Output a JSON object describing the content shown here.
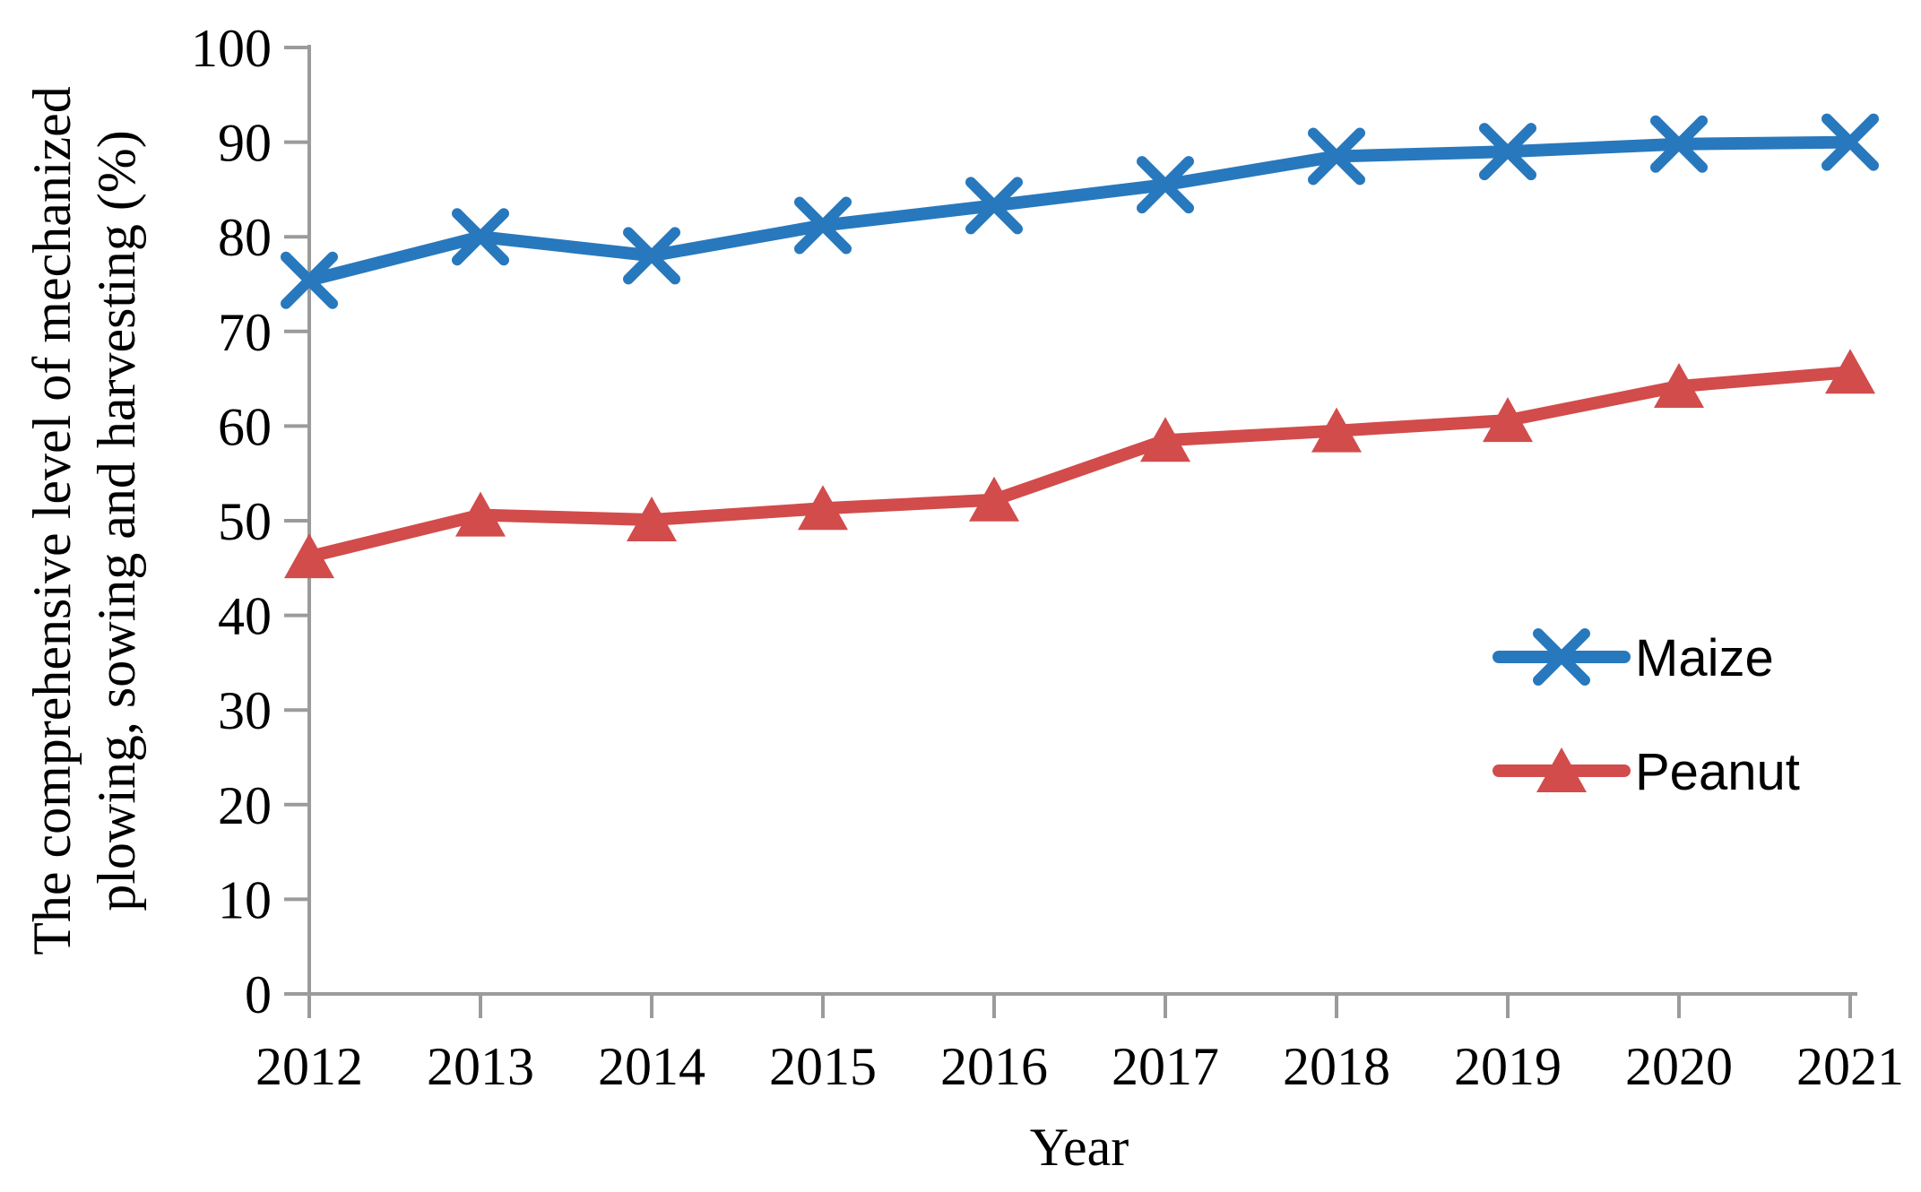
{
  "chart_data": {
    "type": "line",
    "title": "",
    "x": [
      "2012",
      "2013",
      "2014",
      "2015",
      "2016",
      "2017",
      "2018",
      "2019",
      "2020",
      "2021"
    ],
    "series": [
      {
        "name": "Maize",
        "color": "#2878BD",
        "marker": "x-cross",
        "values": [
          75.4,
          80.0,
          78.0,
          81.2,
          83.3,
          85.5,
          88.5,
          89.0,
          89.8,
          90.0
        ]
      },
      {
        "name": "Peanut",
        "color": "#D14C4B",
        "marker": "triangle-up",
        "values": [
          46.2,
          50.6,
          50.1,
          51.3,
          52.2,
          58.5,
          59.5,
          60.6,
          64.2,
          65.7
        ]
      }
    ],
    "xlabel": "Year",
    "ylabel": "The comprehensive level of mechanized plowing, sowing and harvesting (%)",
    "ylabel_lines": [
      "The comprehensive level of mechanized",
      "plowing, sowing and harvesting (%)"
    ],
    "ylim": [
      0,
      100
    ],
    "yticks": [
      0,
      10,
      20,
      30,
      40,
      50,
      60,
      70,
      80,
      90,
      100
    ],
    "grid": false,
    "legend": {
      "position": "inside-right-middle",
      "entries": [
        "Maize",
        "Peanut"
      ]
    },
    "axis_color": "#9B9B9B",
    "text_color": "#000000"
  }
}
